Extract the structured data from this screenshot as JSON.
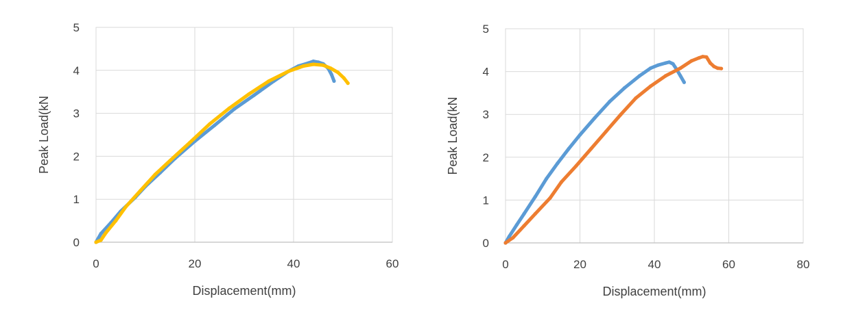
{
  "chart_data": [
    {
      "type": "line",
      "title": "",
      "xlabel": "Displacement(mm)",
      "ylabel": "Peak Load(kN",
      "xlim": [
        0,
        60
      ],
      "ylim": [
        0,
        5
      ],
      "xticks": [
        "0",
        "20",
        "40",
        "60"
      ],
      "yticks": [
        "0",
        "1",
        "2",
        "3",
        "4",
        "5"
      ],
      "grid": true,
      "legend": "none",
      "series": [
        {
          "color": "#5b9bd5",
          "points": [
            [
              0,
              0
            ],
            [
              1,
              0.2
            ],
            [
              3,
              0.45
            ],
            [
              5,
              0.72
            ],
            [
              8,
              1.05
            ],
            [
              10,
              1.3
            ],
            [
              13,
              1.62
            ],
            [
              16,
              1.95
            ],
            [
              20,
              2.35
            ],
            [
              24,
              2.72
            ],
            [
              28,
              3.1
            ],
            [
              32,
              3.42
            ],
            [
              36,
              3.75
            ],
            [
              39,
              3.98
            ],
            [
              41,
              4.1
            ],
            [
              43,
              4.17
            ],
            [
              44,
              4.21
            ],
            [
              45,
              4.19
            ],
            [
              46,
              4.15
            ],
            [
              47,
              4.05
            ],
            [
              47.7,
              3.9
            ],
            [
              48.2,
              3.75
            ]
          ]
        },
        {
          "color": "#ffc000",
          "points": [
            [
              0,
              0
            ],
            [
              1,
              0.05
            ],
            [
              2,
              0.22
            ],
            [
              4,
              0.5
            ],
            [
              6,
              0.82
            ],
            [
              9,
              1.2
            ],
            [
              12,
              1.58
            ],
            [
              15,
              1.9
            ],
            [
              19,
              2.32
            ],
            [
              23,
              2.75
            ],
            [
              27,
              3.12
            ],
            [
              31,
              3.45
            ],
            [
              35,
              3.75
            ],
            [
              39,
              3.98
            ],
            [
              42,
              4.1
            ],
            [
              44,
              4.14
            ],
            [
              46,
              4.12
            ],
            [
              47.5,
              4.05
            ],
            [
              49,
              3.95
            ],
            [
              50.2,
              3.82
            ],
            [
              51,
              3.7
            ]
          ]
        }
      ]
    },
    {
      "type": "line",
      "title": "",
      "xlabel": "Displacement(mm)",
      "ylabel": "Peak Load(kN",
      "xlim": [
        0,
        80
      ],
      "ylim": [
        0,
        5
      ],
      "xticks": [
        "0",
        "20",
        "40",
        "60",
        "80"
      ],
      "yticks": [
        "0",
        "1",
        "2",
        "3",
        "4",
        "5"
      ],
      "grid": true,
      "legend": "none",
      "series": [
        {
          "color": "#5b9bd5",
          "points": [
            [
              0,
              0
            ],
            [
              1,
              0.15
            ],
            [
              3,
              0.42
            ],
            [
              5,
              0.68
            ],
            [
              8,
              1.08
            ],
            [
              11,
              1.5
            ],
            [
              14,
              1.86
            ],
            [
              17,
              2.2
            ],
            [
              20,
              2.52
            ],
            [
              24,
              2.92
            ],
            [
              28,
              3.3
            ],
            [
              32,
              3.62
            ],
            [
              36,
              3.9
            ],
            [
              39,
              4.08
            ],
            [
              41,
              4.15
            ],
            [
              43,
              4.2
            ],
            [
              44,
              4.22
            ],
            [
              45,
              4.18
            ],
            [
              46,
              4.05
            ],
            [
              47,
              3.9
            ],
            [
              48,
              3.75
            ]
          ]
        },
        {
          "color": "#ed7d31",
          "points": [
            [
              0,
              0
            ],
            [
              2,
              0.12
            ],
            [
              5,
              0.4
            ],
            [
              8,
              0.68
            ],
            [
              12,
              1.05
            ],
            [
              15,
              1.42
            ],
            [
              19,
              1.8
            ],
            [
              23,
              2.2
            ],
            [
              27,
              2.6
            ],
            [
              31,
              3.0
            ],
            [
              35,
              3.38
            ],
            [
              39,
              3.66
            ],
            [
              43,
              3.9
            ],
            [
              47,
              4.08
            ],
            [
              50,
              4.25
            ],
            [
              52,
              4.32
            ],
            [
              53,
              4.35
            ],
            [
              54,
              4.34
            ],
            [
              55,
              4.2
            ],
            [
              56,
              4.12
            ],
            [
              57,
              4.08
            ],
            [
              58,
              4.07
            ]
          ]
        }
      ]
    }
  ]
}
